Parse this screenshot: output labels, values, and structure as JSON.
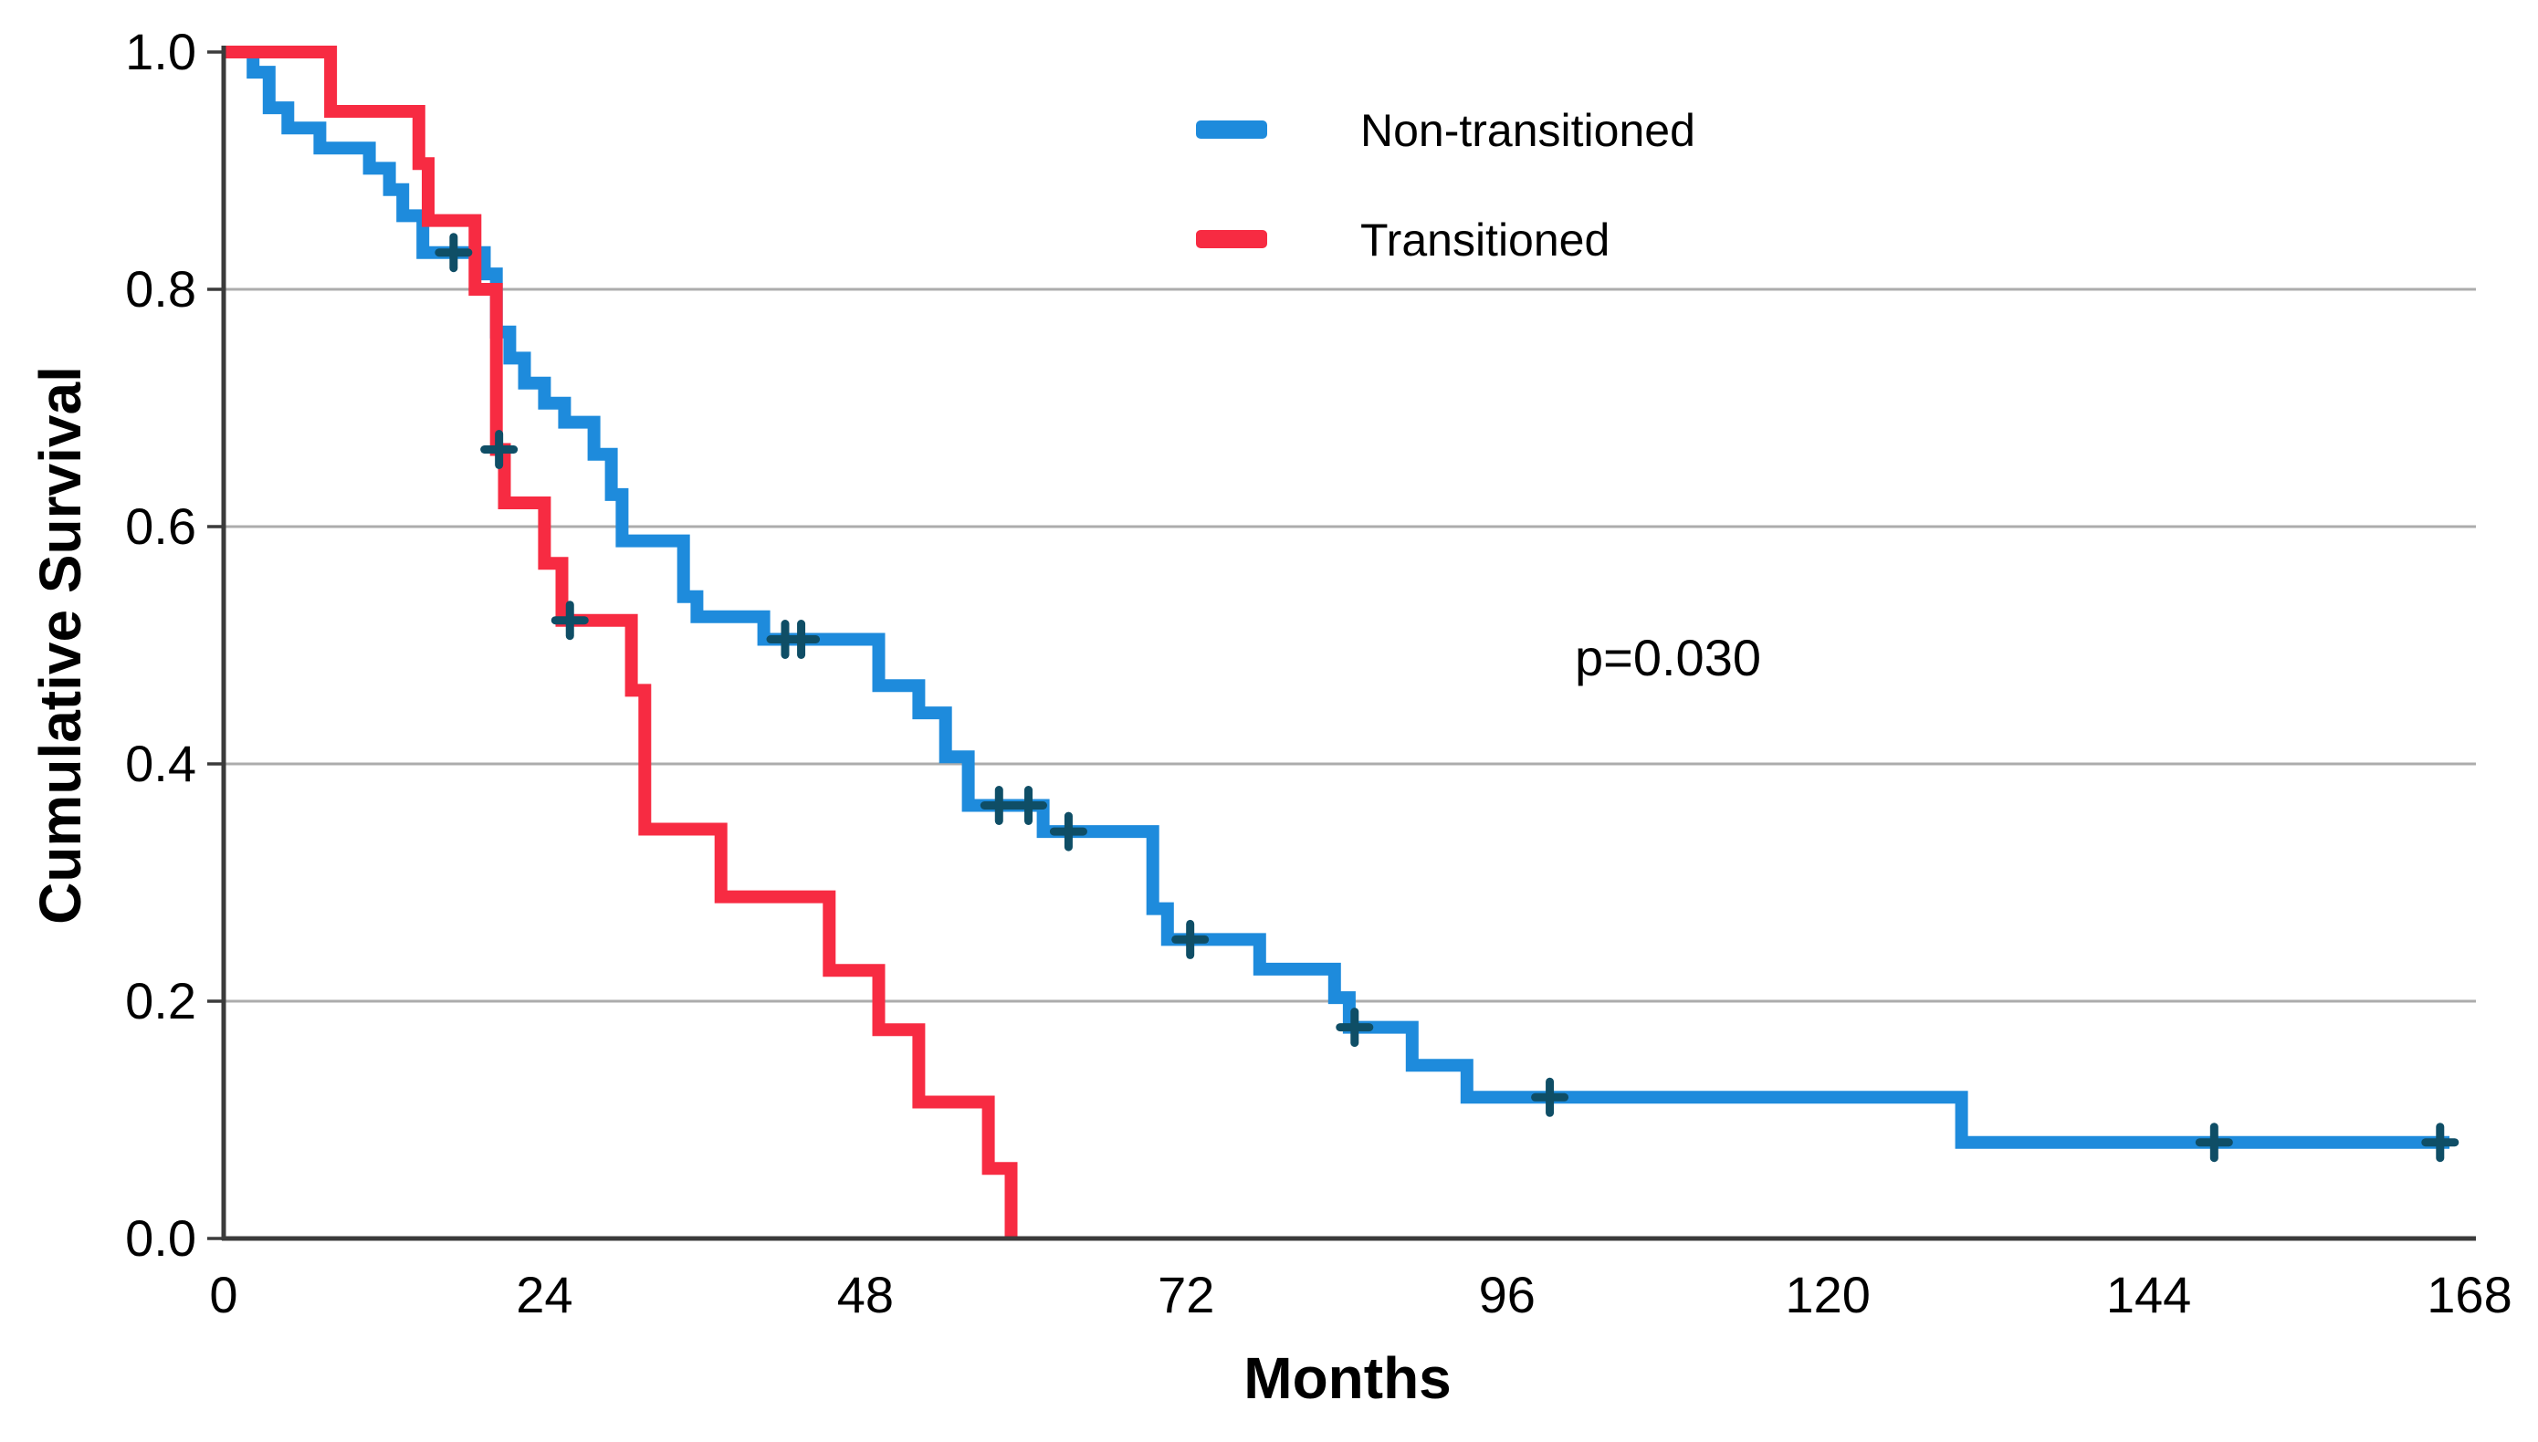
{
  "chart_data": {
    "type": "line",
    "subtype": "kaplan-meier-step",
    "title": "",
    "xlabel": "Months",
    "ylabel": "Cumulative Survival",
    "xlim": [
      0,
      168
    ],
    "ylim": [
      0.0,
      1.0
    ],
    "x_ticks": [
      0,
      24,
      48,
      72,
      96,
      120,
      144,
      168
    ],
    "y_ticks": [
      {
        "label": "1.0",
        "value": 1.0
      },
      {
        "label": "0.8",
        "value": 0.8
      },
      {
        "label": "0.6",
        "value": 0.6
      },
      {
        "label": "0.4",
        "value": 0.4
      },
      {
        "label": "0.2",
        "value": 0.2
      },
      {
        "label": "0.0",
        "value": 0.0
      }
    ],
    "gridlines": [
      0.8,
      0.6,
      0.4,
      0.2
    ],
    "grid_on": true,
    "legend_position": "top-right-inside",
    "annotation": {
      "text": "p=0.030",
      "x_month": 108,
      "y_value": 0.48
    },
    "colors": {
      "non_transitioned": "#1E8BDC",
      "transitioned": "#F72B42",
      "censor_mark": "#0F4E66",
      "gridline": "#ACACAC",
      "axis": "#3B3B3B"
    },
    "legend": [
      {
        "label": "Non-transitioned",
        "color": "#1E8BDC"
      },
      {
        "label": "Transitioned",
        "color": "#F72B42"
      }
    ],
    "series": [
      {
        "name": "Non-transitioned",
        "color": "#1E8BDC",
        "start_value": 1.0,
        "end_month": 166.5,
        "steps": [
          [
            2.2,
            0.983
          ],
          [
            3.4,
            0.953
          ],
          [
            4.8,
            0.936
          ],
          [
            7.2,
            0.919
          ],
          [
            10.9,
            0.902
          ],
          [
            12.4,
            0.884
          ],
          [
            13.4,
            0.862
          ],
          [
            14.9,
            0.831
          ],
          [
            19.5,
            0.813
          ],
          [
            20.4,
            0.764
          ],
          [
            21.4,
            0.742
          ],
          [
            22.5,
            0.721
          ],
          [
            24.0,
            0.704
          ],
          [
            25.5,
            0.688
          ],
          [
            27.7,
            0.661
          ],
          [
            29.0,
            0.627
          ],
          [
            29.8,
            0.588
          ],
          [
            34.4,
            0.541
          ],
          [
            35.4,
            0.524
          ],
          [
            40.4,
            0.505
          ],
          [
            49.0,
            0.466
          ],
          [
            52.0,
            0.443
          ],
          [
            54.0,
            0.406
          ],
          [
            55.7,
            0.365
          ],
          [
            61.3,
            0.343
          ],
          [
            69.5,
            0.278
          ],
          [
            70.6,
            0.252
          ],
          [
            77.5,
            0.227
          ],
          [
            83.1,
            0.203
          ],
          [
            84.2,
            0.178
          ],
          [
            88.9,
            0.146
          ],
          [
            93.0,
            0.119
          ],
          [
            130.0,
            0.081
          ]
        ],
        "censors": [
          [
            17.2,
            0.831
          ],
          [
            42.0,
            0.505
          ],
          [
            43.2,
            0.505
          ],
          [
            58.0,
            0.365
          ],
          [
            60.2,
            0.365
          ],
          [
            63.2,
            0.343
          ],
          [
            72.3,
            0.252
          ],
          [
            84.6,
            0.178
          ],
          [
            99.2,
            0.119
          ],
          [
            148.9,
            0.081
          ],
          [
            165.8,
            0.081
          ]
        ]
      },
      {
        "name": "Transitioned",
        "color": "#F72B42",
        "start_value": 1.0,
        "end_month": 58.9,
        "steps": [
          [
            8.0,
            0.95
          ],
          [
            14.6,
            0.906
          ],
          [
            15.3,
            0.858
          ],
          [
            18.8,
            0.8
          ],
          [
            20.4,
            0.665
          ],
          [
            21.0,
            0.62
          ],
          [
            24.0,
            0.569
          ],
          [
            25.3,
            0.521
          ],
          [
            30.5,
            0.462
          ],
          [
            31.5,
            0.345
          ],
          [
            37.2,
            0.288
          ],
          [
            45.3,
            0.226
          ],
          [
            49.0,
            0.176
          ],
          [
            52.0,
            0.115
          ],
          [
            57.2,
            0.059
          ],
          [
            58.9,
            0.0
          ]
        ],
        "censors": [
          [
            20.6,
            0.665
          ],
          [
            25.9,
            0.521
          ]
        ]
      }
    ]
  }
}
